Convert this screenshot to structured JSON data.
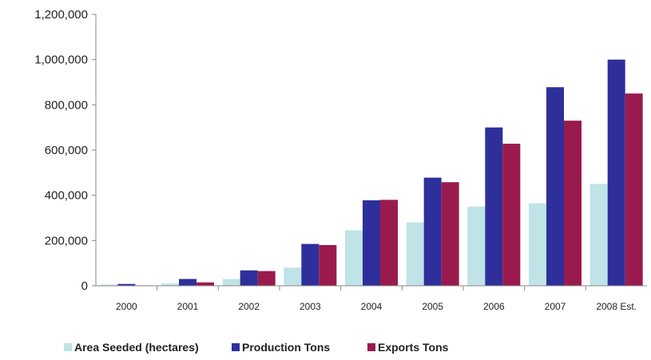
{
  "chart_data": {
    "type": "bar",
    "title": "",
    "xlabel": "",
    "ylabel": "",
    "categories": [
      "2000",
      "2001",
      "2002",
      "2003",
      "2004",
      "2005",
      "2006",
      "2007",
      "2008 Est."
    ],
    "ylim": [
      0,
      1200000
    ],
    "yticks": [
      {
        "value": 0,
        "label": "0"
      },
      {
        "value": 200000,
        "label": "200,000"
      },
      {
        "value": 400000,
        "label": "400,000"
      },
      {
        "value": 600000,
        "label": "600,000"
      },
      {
        "value": 800000,
        "label": "800,000"
      },
      {
        "value": 1000000,
        "label": "1,000,000"
      },
      {
        "value": 1200000,
        "label": "1,200,000"
      }
    ],
    "grid": false,
    "legend_position": "bottom",
    "series": [
      {
        "name": "Area Seeded (hectares)",
        "color": "#bfe3e6",
        "values": [
          5000,
          10000,
          30000,
          80000,
          245000,
          280000,
          350000,
          365000,
          450000
        ]
      },
      {
        "name": "Production Tons",
        "color": "#2e2f9b",
        "values": [
          8000,
          30000,
          68000,
          185000,
          378000,
          478000,
          700000,
          878000,
          1000000
        ]
      },
      {
        "name": "Exports Tons",
        "color": "#9b1a4d",
        "values": [
          2000,
          15000,
          65000,
          180000,
          380000,
          458000,
          628000,
          730000,
          850000
        ]
      }
    ]
  }
}
